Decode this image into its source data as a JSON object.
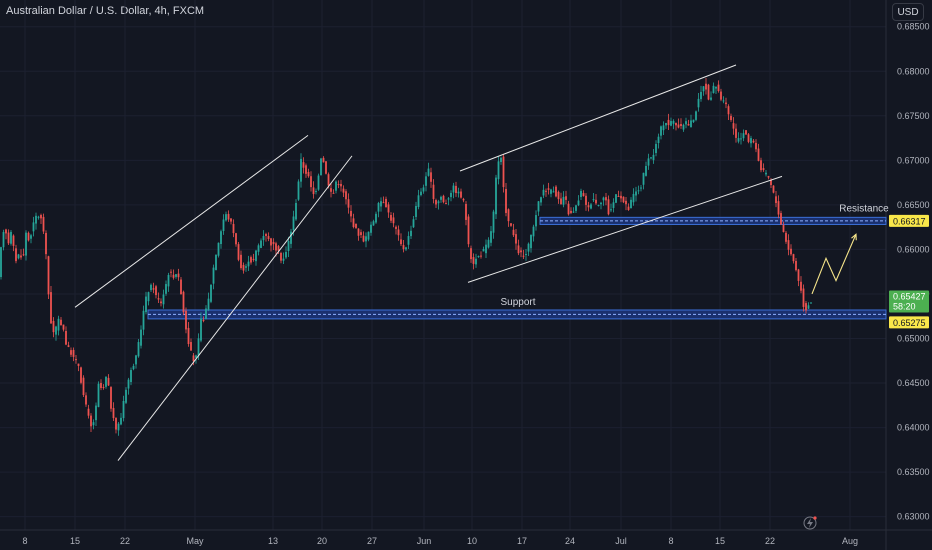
{
  "header": {
    "title": "Australian Dollar / U.S. Dollar, 4h, FXCM",
    "currency": "USD"
  },
  "chart_data": {
    "type": "candlestick",
    "ylim": [
      0.6285,
      0.688
    ],
    "y_ticks": [
      "0.68500",
      "0.68000",
      "0.67500",
      "0.67000",
      "0.66500",
      "0.66000",
      "0.65500",
      "0.65000",
      "0.64500",
      "0.64000",
      "0.63500",
      "0.63000"
    ],
    "x_ticks": [
      "8",
      "15",
      "22",
      "May",
      "13",
      "20",
      "27",
      "Jun",
      "10",
      "17",
      "24",
      "Jul",
      "8",
      "15",
      "22",
      "Aug"
    ],
    "price_path": [
      [
        0,
        0.657
      ],
      [
        3,
        0.661
      ],
      [
        6,
        0.663
      ],
      [
        9,
        0.6605
      ],
      [
        12,
        0.662
      ],
      [
        15,
        0.66
      ],
      [
        18,
        0.6585
      ],
      [
        21,
        0.66
      ],
      [
        24,
        0.6585
      ],
      [
        27,
        0.662
      ],
      [
        30,
        0.661
      ],
      [
        34,
        0.6625
      ],
      [
        38,
        0.664
      ],
      [
        42,
        0.6635
      ],
      [
        46,
        0.6615
      ],
      [
        49,
        0.656
      ],
      [
        52,
        0.652
      ],
      [
        55,
        0.6505
      ],
      [
        60,
        0.652
      ],
      [
        64,
        0.6515
      ],
      [
        68,
        0.649
      ],
      [
        72,
        0.6485
      ],
      [
        76,
        0.6475
      ],
      [
        80,
        0.647
      ],
      [
        84,
        0.644
      ],
      [
        88,
        0.642
      ],
      [
        92,
        0.64
      ],
      [
        96,
        0.641
      ],
      [
        100,
        0.645
      ],
      [
        104,
        0.644
      ],
      [
        108,
        0.646
      ],
      [
        112,
        0.6425
      ],
      [
        116,
        0.64
      ],
      [
        118,
        0.6398
      ],
      [
        122,
        0.641
      ],
      [
        126,
        0.644
      ],
      [
        130,
        0.6455
      ],
      [
        134,
        0.647
      ],
      [
        138,
        0.648
      ],
      [
        142,
        0.651
      ],
      [
        146,
        0.654
      ],
      [
        150,
        0.6555
      ],
      [
        154,
        0.656
      ],
      [
        158,
        0.6545
      ],
      [
        162,
        0.654
      ],
      [
        166,
        0.6555
      ],
      [
        170,
        0.6575
      ],
      [
        174,
        0.657
      ],
      [
        178,
        0.6575
      ],
      [
        182,
        0.6555
      ],
      [
        186,
        0.652
      ],
      [
        190,
        0.6495
      ],
      [
        194,
        0.6475
      ],
      [
        198,
        0.648
      ],
      [
        202,
        0.652
      ],
      [
        206,
        0.6525
      ],
      [
        210,
        0.6545
      ],
      [
        214,
        0.6575
      ],
      [
        218,
        0.66
      ],
      [
        222,
        0.662
      ],
      [
        226,
        0.664
      ],
      [
        230,
        0.6635
      ],
      [
        234,
        0.6625
      ],
      [
        238,
        0.66
      ],
      [
        242,
        0.658
      ],
      [
        246,
        0.6575
      ],
      [
        250,
        0.659
      ],
      [
        254,
        0.6585
      ],
      [
        258,
        0.66
      ],
      [
        262,
        0.661
      ],
      [
        266,
        0.662
      ],
      [
        270,
        0.661
      ],
      [
        274,
        0.6605
      ],
      [
        278,
        0.66
      ],
      [
        282,
        0.659
      ],
      [
        286,
        0.659
      ],
      [
        290,
        0.661
      ],
      [
        294,
        0.663
      ],
      [
        298,
        0.666
      ],
      [
        302,
        0.67
      ],
      [
        306,
        0.669
      ],
      [
        310,
        0.668
      ],
      [
        314,
        0.666
      ],
      [
        318,
        0.667
      ],
      [
        322,
        0.6705
      ],
      [
        326,
        0.6695
      ],
      [
        330,
        0.667
      ],
      [
        334,
        0.666
      ],
      [
        338,
        0.668
      ],
      [
        342,
        0.667
      ],
      [
        346,
        0.666
      ],
      [
        350,
        0.6645
      ],
      [
        354,
        0.663
      ],
      [
        358,
        0.662
      ],
      [
        362,
        0.6615
      ],
      [
        366,
        0.661
      ],
      [
        370,
        0.662
      ],
      [
        374,
        0.663
      ],
      [
        378,
        0.6645
      ],
      [
        382,
        0.6655
      ],
      [
        386,
        0.6655
      ],
      [
        390,
        0.664
      ],
      [
        394,
        0.663
      ],
      [
        398,
        0.662
      ],
      [
        402,
        0.6605
      ],
      [
        406,
        0.66
      ],
      [
        410,
        0.6615
      ],
      [
        414,
        0.663
      ],
      [
        418,
        0.6655
      ],
      [
        422,
        0.6665
      ],
      [
        426,
        0.6675
      ],
      [
        430,
        0.669
      ],
      [
        434,
        0.666
      ],
      [
        438,
        0.665
      ],
      [
        442,
        0.666
      ],
      [
        446,
        0.665
      ],
      [
        450,
        0.666
      ],
      [
        454,
        0.667
      ],
      [
        458,
        0.6665
      ],
      [
        462,
        0.666
      ],
      [
        466,
        0.665
      ],
      [
        470,
        0.66
      ],
      [
        474,
        0.6585
      ],
      [
        478,
        0.659
      ],
      [
        482,
        0.6595
      ],
      [
        486,
        0.66
      ],
      [
        490,
        0.661
      ],
      [
        494,
        0.663
      ],
      [
        498,
        0.669
      ],
      [
        502,
        0.6705
      ],
      [
        506,
        0.665
      ],
      [
        510,
        0.663
      ],
      [
        514,
        0.662
      ],
      [
        518,
        0.66
      ],
      [
        522,
        0.6595
      ],
      [
        526,
        0.659
      ],
      [
        530,
        0.6605
      ],
      [
        534,
        0.662
      ],
      [
        538,
        0.6645
      ],
      [
        542,
        0.666
      ],
      [
        546,
        0.667
      ],
      [
        550,
        0.6665
      ],
      [
        554,
        0.667
      ],
      [
        558,
        0.666
      ],
      [
        562,
        0.665
      ],
      [
        566,
        0.666
      ],
      [
        570,
        0.664
      ],
      [
        574,
        0.664
      ],
      [
        578,
        0.665
      ],
      [
        582,
        0.6665
      ],
      [
        586,
        0.6655
      ],
      [
        590,
        0.6645
      ],
      [
        594,
        0.666
      ],
      [
        598,
        0.665
      ],
      [
        602,
        0.6655
      ],
      [
        606,
        0.666
      ],
      [
        610,
        0.664
      ],
      [
        614,
        0.665
      ],
      [
        618,
        0.6665
      ],
      [
        622,
        0.666
      ],
      [
        626,
        0.665
      ],
      [
        630,
        0.6645
      ],
      [
        634,
        0.666
      ],
      [
        638,
        0.6665
      ],
      [
        642,
        0.667
      ],
      [
        646,
        0.669
      ],
      [
        650,
        0.67
      ],
      [
        654,
        0.6705
      ],
      [
        658,
        0.672
      ],
      [
        662,
        0.6735
      ],
      [
        666,
        0.6745
      ],
      [
        670,
        0.674
      ],
      [
        674,
        0.6745
      ],
      [
        678,
        0.674
      ],
      [
        682,
        0.6735
      ],
      [
        686,
        0.6745
      ],
      [
        690,
        0.674
      ],
      [
        694,
        0.6745
      ],
      [
        698,
        0.676
      ],
      [
        702,
        0.6775
      ],
      [
        706,
        0.679
      ],
      [
        710,
        0.6765
      ],
      [
        714,
        0.678
      ],
      [
        718,
        0.6785
      ],
      [
        722,
        0.677
      ],
      [
        726,
        0.6765
      ],
      [
        730,
        0.675
      ],
      [
        734,
        0.674
      ],
      [
        738,
        0.672
      ],
      [
        742,
        0.6725
      ],
      [
        746,
        0.6735
      ],
      [
        750,
        0.672
      ],
      [
        754,
        0.6725
      ],
      [
        758,
        0.671
      ],
      [
        762,
        0.669
      ],
      [
        766,
        0.6685
      ],
      [
        770,
        0.668
      ],
      [
        774,
        0.6665
      ],
      [
        778,
        0.665
      ],
      [
        782,
        0.663
      ],
      [
        786,
        0.6615
      ],
      [
        790,
        0.66
      ],
      [
        794,
        0.659
      ],
      [
        798,
        0.6575
      ],
      [
        802,
        0.6555
      ],
      [
        806,
        0.653
      ],
      [
        810,
        0.654
      ],
      [
        813,
        0.6542
      ]
    ],
    "annotations": [
      {
        "label": "Resistance",
        "low": 0.6628,
        "high": 0.6636,
        "price_label": "0.66317"
      },
      {
        "label": "Support",
        "low": 0.6522,
        "high": 0.6532,
        "price_label": "0.65275"
      }
    ],
    "last_price": {
      "value": "0.65427",
      "countdown": "58:20"
    },
    "trend_channels": [
      {
        "upper": [
          [
            75,
            0.6535
          ],
          [
            308,
            0.6728
          ]
        ],
        "lower": [
          [
            118,
            0.6363
          ],
          [
            352,
            0.6705
          ]
        ]
      },
      {
        "upper": [
          [
            460,
            0.6688
          ],
          [
            736,
            0.6807
          ]
        ],
        "lower": [
          [
            468,
            0.6563
          ],
          [
            782,
            0.6682
          ]
        ]
      }
    ],
    "projection": [
      [
        812,
        0.655
      ],
      [
        826,
        0.659
      ],
      [
        836,
        0.6565
      ],
      [
        856,
        0.6617
      ]
    ],
    "colors": {
      "up": "#26a69a",
      "down": "#ef5350",
      "zone_fill": "#1e3a8a",
      "zone_border": "#3b6fd6",
      "label_bg": "#f9e74a",
      "last_bg": "#4caf50",
      "projection": "#f5e48a",
      "background": "#131722",
      "grid": "#1c2030",
      "text": "#b2b5be"
    }
  }
}
